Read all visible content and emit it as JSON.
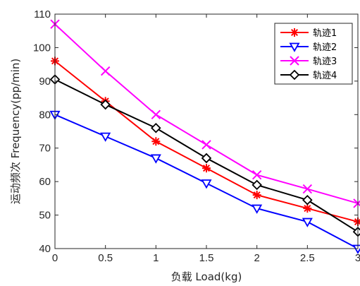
{
  "chart_data": {
    "type": "line",
    "xlabel": "负载 Load(kg)",
    "ylabel": "运动频次 Frequency(pp/min)",
    "xlim": [
      0,
      3
    ],
    "ylim": [
      40,
      110
    ],
    "x_ticks": [
      "0",
      "0.5",
      "1",
      "1.5",
      "2",
      "2.5",
      "3"
    ],
    "y_ticks": [
      "40",
      "50",
      "60",
      "70",
      "80",
      "90",
      "100",
      "110"
    ],
    "grid": false,
    "legend_position": "top-right",
    "x": [
      0,
      0.5,
      1,
      1.5,
      2,
      2.5,
      3
    ],
    "series": [
      {
        "name": "轨迹1",
        "color": "#ff0000",
        "marker": "asterisk",
        "values": [
          96,
          84,
          72,
          64,
          56,
          52,
          48
        ]
      },
      {
        "name": "轨迹2",
        "color": "#0000ff",
        "marker": "triangle-down",
        "values": [
          80,
          73.5,
          67,
          59.5,
          52,
          48,
          40
        ]
      },
      {
        "name": "轨迹3",
        "color": "#ff00ff",
        "marker": "x",
        "values": [
          107,
          93,
          80,
          71,
          62,
          57.8,
          53.5
        ]
      },
      {
        "name": "轨迹4",
        "color": "#000000",
        "marker": "diamond",
        "values": [
          90.5,
          83,
          76,
          67,
          59,
          54.5,
          45
        ]
      }
    ]
  }
}
